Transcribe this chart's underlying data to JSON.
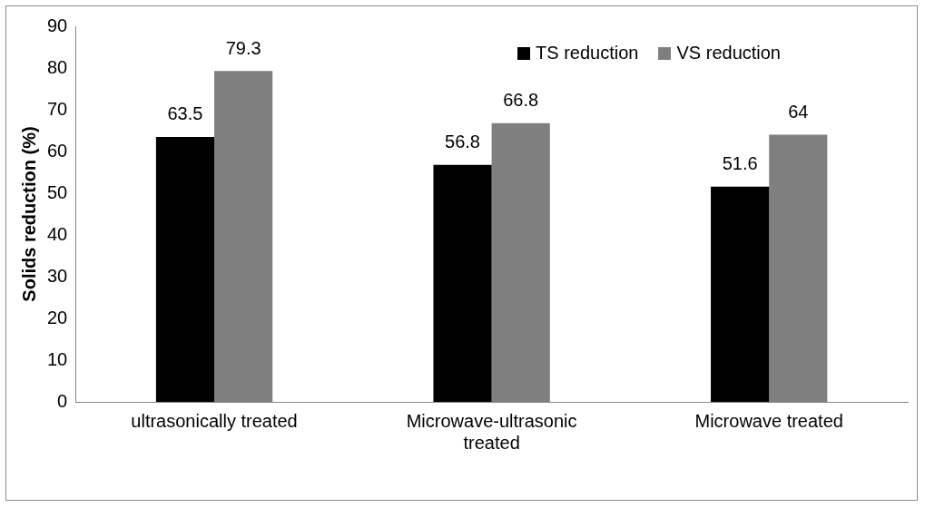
{
  "chart_data": {
    "type": "bar",
    "ylabel": "Solids reduction (%)",
    "categories": [
      "ultrasonically treated",
      "Microwave-ultrasonic treated",
      "Microwave treated"
    ],
    "series": [
      {
        "name": "TS reduction",
        "color": "#000000",
        "values": [
          63.5,
          56.8,
          51.6
        ]
      },
      {
        "name": "VS reduction",
        "color": "#7f7f7f",
        "values": [
          79.3,
          66.8,
          64
        ]
      }
    ],
    "ylim": [
      0,
      90
    ],
    "yticks": [
      0,
      10,
      20,
      30,
      40,
      50,
      60,
      70,
      80,
      90
    ],
    "data_labels": true,
    "legend": "top right"
  }
}
